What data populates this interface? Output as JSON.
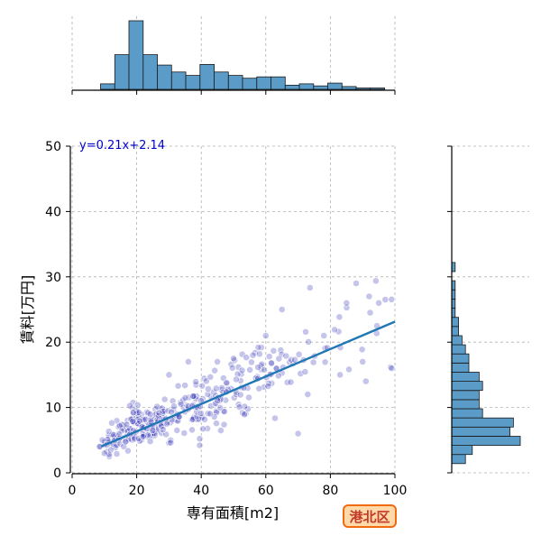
{
  "ward_label": "港北区",
  "colors": {
    "grid": "#b0b0b0",
    "axis": "#000000",
    "points": "#2f2fb8",
    "regression": "#1f77b4",
    "hist_fill": "#5b9bc8",
    "hist_edge": "#1a1a1a",
    "equation": "#0000cc",
    "badge_bg": "#ffd9a8",
    "badge_border": "#f26b12",
    "badge_text": "#c0392b"
  },
  "chart_data": {
    "type": "scatter",
    "xlabel": "専有面積[m2]",
    "ylabel": "賃料[万円]",
    "xlim": [
      0,
      100
    ],
    "ylim": [
      0,
      50
    ],
    "x_ticks": [
      0,
      20,
      40,
      60,
      80,
      100
    ],
    "y_ticks": [
      0,
      10,
      20,
      30,
      40,
      50
    ],
    "grid": true,
    "regression": {
      "slope": 0.21,
      "intercept": 2.14,
      "label": "y=0.21x+2.14",
      "x_range": [
        9,
        100
      ]
    },
    "clusters": [
      {
        "x": 12,
        "y": 4.5,
        "n": 26,
        "sx": 1.6,
        "sy": 0.9
      },
      {
        "x": 16,
        "y": 6.0,
        "n": 34,
        "sx": 1.8,
        "sy": 1.3
      },
      {
        "x": 20,
        "y": 7.0,
        "n": 48,
        "sx": 1.8,
        "sy": 1.5
      },
      {
        "x": 24,
        "y": 7.5,
        "n": 42,
        "sx": 2.2,
        "sy": 1.6
      },
      {
        "x": 28,
        "y": 8.3,
        "n": 32,
        "sx": 2.2,
        "sy": 1.8
      },
      {
        "x": 33,
        "y": 9.0,
        "n": 30,
        "sx": 2.4,
        "sy": 1.9
      },
      {
        "x": 38,
        "y": 10.0,
        "n": 24,
        "sx": 2.4,
        "sy": 2.0
      },
      {
        "x": 42,
        "y": 11.0,
        "n": 30,
        "sx": 2.4,
        "sy": 2.0
      },
      {
        "x": 47,
        "y": 12.0,
        "n": 24,
        "sx": 2.4,
        "sy": 2.1
      },
      {
        "x": 52,
        "y": 13.0,
        "n": 20,
        "sx": 2.6,
        "sy": 2.2
      },
      {
        "x": 57,
        "y": 14.5,
        "n": 20,
        "sx": 2.6,
        "sy": 2.4
      },
      {
        "x": 62,
        "y": 16.0,
        "n": 18,
        "sx": 2.8,
        "sy": 2.6
      },
      {
        "x": 68,
        "y": 17.0,
        "n": 12,
        "sx": 3.0,
        "sy": 2.8
      },
      {
        "x": 75,
        "y": 18.5,
        "n": 8,
        "sx": 3.0,
        "sy": 3.0
      },
      {
        "x": 85,
        "y": 21.0,
        "n": 8,
        "sx": 5.0,
        "sy": 3.5
      },
      {
        "x": 95,
        "y": 22.0,
        "n": 6,
        "sx": 4.0,
        "sy": 3.5
      }
    ],
    "outliers": [
      [
        8.5,
        4
      ],
      [
        10,
        3
      ],
      [
        70,
        6
      ],
      [
        88,
        29
      ],
      [
        92,
        27
      ],
      [
        95,
        26
      ],
      [
        97,
        26.5
      ],
      [
        85,
        26
      ],
      [
        60,
        21
      ],
      [
        30,
        15
      ],
      [
        36,
        17
      ],
      [
        45,
        17
      ],
      [
        50,
        17.5
      ],
      [
        65,
        25
      ],
      [
        90,
        17
      ],
      [
        99,
        16
      ],
      [
        78,
        21
      ],
      [
        83,
        15
      ],
      [
        91,
        14
      ],
      [
        73,
        12
      ]
    ],
    "x_histogram": {
      "bin_edges": [
        0,
        4.4,
        8.8,
        13.2,
        17.6,
        22,
        26.4,
        30.8,
        35.2,
        39.6,
        44,
        48.4,
        52.8,
        57.2,
        61.6,
        66,
        70.4,
        74.8,
        79.2,
        83.6,
        88,
        92.4,
        96.8,
        101.2
      ],
      "counts": [
        0,
        0,
        8,
        50,
        99,
        50,
        35,
        25,
        20,
        36,
        25,
        20,
        16,
        18,
        18,
        6,
        8,
        5,
        9,
        4,
        2,
        2,
        0
      ]
    },
    "y_histogram": {
      "bin_edges": [
        0,
        1.4,
        2.8,
        4.2,
        5.6,
        7.0,
        8.4,
        9.8,
        11.2,
        12.6,
        14.0,
        15.4,
        16.8,
        18.2,
        19.6,
        21.0,
        22.4,
        23.8,
        25.2,
        26.6,
        28.0,
        29.4,
        30.8,
        32.2,
        33.6,
        35.0,
        36.4,
        37.8,
        39.2,
        40.6,
        42.0,
        43.4,
        44.8,
        46.2,
        47.6,
        49.0,
        50.4
      ],
      "counts": [
        0,
        4,
        6,
        20,
        17,
        18,
        9,
        8,
        8,
        9,
        8,
        5,
        5,
        4,
        3,
        2,
        2,
        1,
        1,
        1,
        1,
        0,
        1,
        0,
        0,
        0,
        0,
        0,
        0,
        0,
        0,
        0,
        0,
        0,
        0,
        0
      ]
    }
  }
}
